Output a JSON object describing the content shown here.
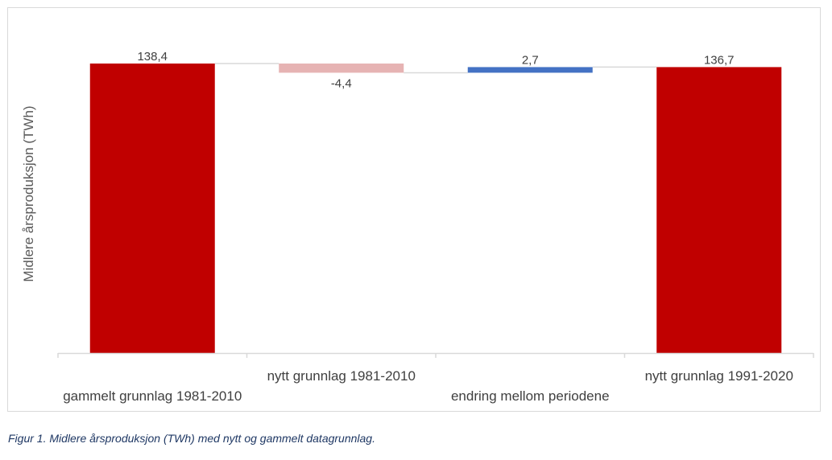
{
  "chart_data": {
    "type": "bar",
    "subtype": "waterfall",
    "categories": [
      "gammelt grunnlag 1981-2010",
      "nytt grunnlag 1981-2010",
      "endring mellom periodene",
      "nytt grunnlag 1991-2020"
    ],
    "values": [
      138.4,
      -4.4,
      2.7,
      136.7
    ],
    "data_labels": [
      "138,4",
      "-4,4",
      "2,7",
      "136,7"
    ],
    "bar_kinds": [
      "total",
      "delta",
      "delta",
      "total"
    ],
    "ylabel": "Midlere årsproduksjon (TWh)",
    "xlabel": "",
    "ylim": [
      0,
      140
    ],
    "grid": false,
    "legend": "none",
    "colors": {
      "total": "#c00000",
      "negative": "#e6b3b3",
      "positive": "#4472c4",
      "connector": "#d9d9d9",
      "axis": "#d9d9d9"
    }
  },
  "caption": "Figur 1. Midlere årsproduksjon (TWh) med nytt og gammelt datagrunnlag."
}
